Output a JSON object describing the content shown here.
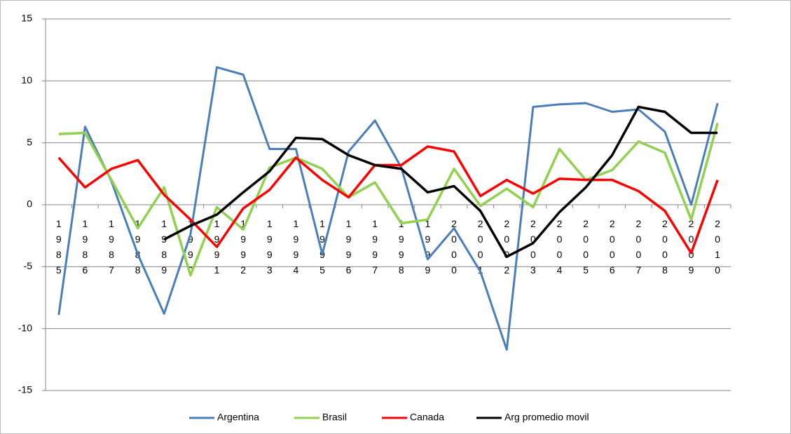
{
  "chart_data": {
    "type": "line",
    "categories": [
      "1985",
      "1986",
      "1987",
      "1988",
      "1989",
      "1990",
      "1991",
      "1992",
      "1993",
      "1994",
      "1995",
      "1996",
      "1997",
      "1998",
      "1999",
      "2000",
      "2001",
      "2002",
      "2003",
      "2004",
      "2005",
      "2006",
      "2007",
      "2008",
      "2009",
      "2010"
    ],
    "series": [
      {
        "name": "Argentina",
        "color": "#4a7ebb",
        "values": [
          -8.9,
          6.3,
          1.9,
          -4.0,
          -8.8,
          -2.4,
          11.1,
          10.5,
          4.5,
          4.5,
          -4.0,
          4.3,
          6.8,
          3.0,
          -4.4,
          -1.9,
          -5.4,
          -11.7,
          7.9,
          8.1,
          8.2,
          7.5,
          7.7,
          5.9,
          0.0,
          8.2
        ]
      },
      {
        "name": "Brasil",
        "color": "#92d050",
        "values": [
          5.7,
          5.8,
          2.0,
          -1.9,
          1.4,
          -5.7,
          -0.2,
          -2.0,
          3.0,
          3.8,
          2.9,
          0.6,
          1.8,
          -1.5,
          -1.2,
          2.9,
          -0.1,
          1.3,
          -0.2,
          4.5,
          2.0,
          2.8,
          5.1,
          4.2,
          -1.2,
          6.6
        ]
      },
      {
        "name": "Canada",
        "color": "#ff0000",
        "values": [
          3.8,
          1.4,
          2.9,
          3.6,
          0.8,
          -1.2,
          -3.4,
          -0.3,
          1.2,
          3.8,
          2.0,
          0.6,
          3.2,
          3.2,
          4.7,
          4.3,
          0.7,
          2.0,
          0.9,
          2.1,
          2.0,
          2.0,
          1.1,
          -0.5,
          -3.9,
          2.0
        ]
      },
      {
        "name": "Arg promedio movil",
        "color": "#000000",
        "values": [
          null,
          null,
          null,
          null,
          -2.8,
          -1.7,
          -0.8,
          1.0,
          2.7,
          5.4,
          5.3,
          4.0,
          3.2,
          2.9,
          1.0,
          1.5,
          -0.5,
          -4.2,
          -3.1,
          -0.6,
          1.4,
          4.0,
          7.9,
          7.5,
          5.8,
          5.8
        ]
      }
    ],
    "ylim": [
      -15,
      15
    ],
    "yticks": [
      -15,
      -10,
      -5,
      0,
      5,
      10,
      15
    ],
    "grid": true,
    "legend": "bottom"
  }
}
